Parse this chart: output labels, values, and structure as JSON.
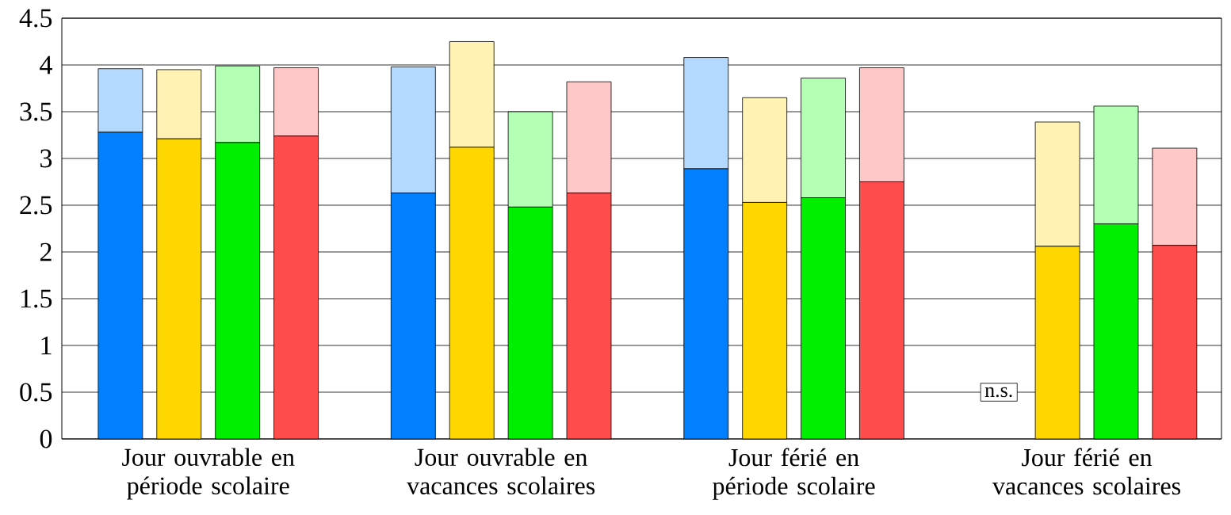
{
  "chart_data": {
    "type": "bar",
    "stacked": true,
    "categories": [
      null,
      null,
      null,
      null,
      null,
      null,
      null,
      null,
      null,
      null,
      null,
      null,
      null,
      null,
      null,
      null,
      null,
      null,
      null
    ],
    "series": [
      {
        "colors": [
          "#0080ff",
          "#ffd700",
          "#00ee00",
          "#ff4d4d",
          null,
          "#0080ff",
          "#ffd700",
          "#00ee00",
          "#ff4d4d",
          null,
          "#0080ff",
          "#ffd700",
          "#00ee00",
          "#ff4d4d",
          null,
          "#0080ff",
          "#ffd700",
          "#00ee00",
          "#ff4d4d"
        ],
        "values": [
          3.28,
          3.21,
          3.17,
          3.24,
          null,
          2.63,
          3.12,
          2.48,
          2.63,
          null,
          2.89,
          2.53,
          2.58,
          2.75,
          null,
          null,
          2.06,
          2.3,
          2.07
        ]
      },
      {
        "colors": [
          "#b3d9ff",
          "#fff2b3",
          "#b3ffb3",
          "#ffc8c8",
          null,
          "#b3d9ff",
          "#fff2b3",
          "#b3ffb3",
          "#ffc8c8",
          null,
          "#b3d9ff",
          "#fff2b3",
          "#b3ffb3",
          "#ffc8c8",
          null,
          "#b3d9ff",
          "#fff2b3",
          "#b3ffb3",
          "#ffc8c8"
        ],
        "values": [
          0.68,
          0.74,
          0.82,
          0.73,
          null,
          1.35,
          1.13,
          1.02,
          1.19,
          null,
          1.19,
          1.12,
          1.28,
          1.22,
          null,
          null,
          1.33,
          1.26,
          1.04
        ]
      }
    ],
    "ylim": [
      0,
      4.5
    ],
    "yticks": [
      0,
      0.5,
      1,
      1.5,
      2,
      2.5,
      3,
      3.5,
      4,
      4.5
    ],
    "grid": "y",
    "annotations": [
      "Jour ouvrable en période scolaire",
      "Jour ouvrable en vacances scolaires",
      "Jour férié en période scolaire",
      "Jour férié en vacances scolaires",
      "n.s."
    ]
  }
}
